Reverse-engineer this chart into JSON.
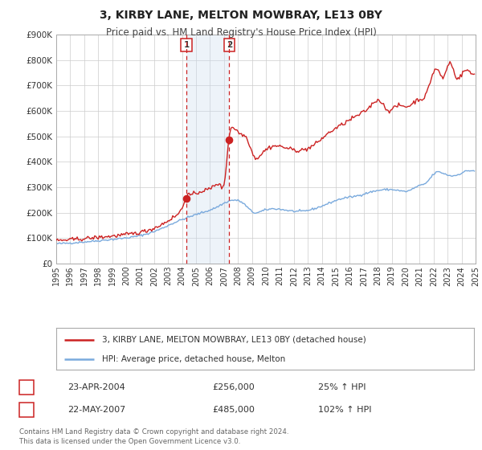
{
  "title": "3, KIRBY LANE, MELTON MOWBRAY, LE13 0BY",
  "subtitle": "Price paid vs. HM Land Registry's House Price Index (HPI)",
  "legend_entry1": "3, KIRBY LANE, MELTON MOWBRAY, LE13 0BY (detached house)",
  "legend_entry2": "HPI: Average price, detached house, Melton",
  "transaction1_date": "23-APR-2004",
  "transaction1_price": "£256,000",
  "transaction1_hpi": "25% ↑ HPI",
  "transaction2_date": "22-MAY-2007",
  "transaction2_price": "£485,000",
  "transaction2_hpi": "102% ↑ HPI",
  "footer_line1": "Contains HM Land Registry data © Crown copyright and database right 2024.",
  "footer_line2": "This data is licensed under the Open Government Licence v3.0.",
  "hpi_color": "#7aaadd",
  "price_color": "#cc2222",
  "transaction1_x": 2004.31,
  "transaction1_y": 256000,
  "transaction2_x": 2007.38,
  "transaction2_y": 485000,
  "ylim": [
    0,
    900000
  ],
  "xlim_start": 1995,
  "xlim_end": 2025,
  "yticks": [
    0,
    100000,
    200000,
    300000,
    400000,
    500000,
    600000,
    700000,
    800000,
    900000
  ],
  "ytick_labels": [
    "£0",
    "£100K",
    "£200K",
    "£300K",
    "£400K",
    "£500K",
    "£600K",
    "£700K",
    "£800K",
    "£900K"
  ],
  "xtick_years": [
    1995,
    1996,
    1997,
    1998,
    1999,
    2000,
    2001,
    2002,
    2003,
    2004,
    2005,
    2006,
    2007,
    2008,
    2009,
    2010,
    2011,
    2012,
    2013,
    2014,
    2015,
    2016,
    2017,
    2018,
    2019,
    2020,
    2021,
    2022,
    2023,
    2024,
    2025
  ],
  "background_color": "#ffffff",
  "grid_color": "#cccccc",
  "shaded_region_color": "#ccddf0"
}
